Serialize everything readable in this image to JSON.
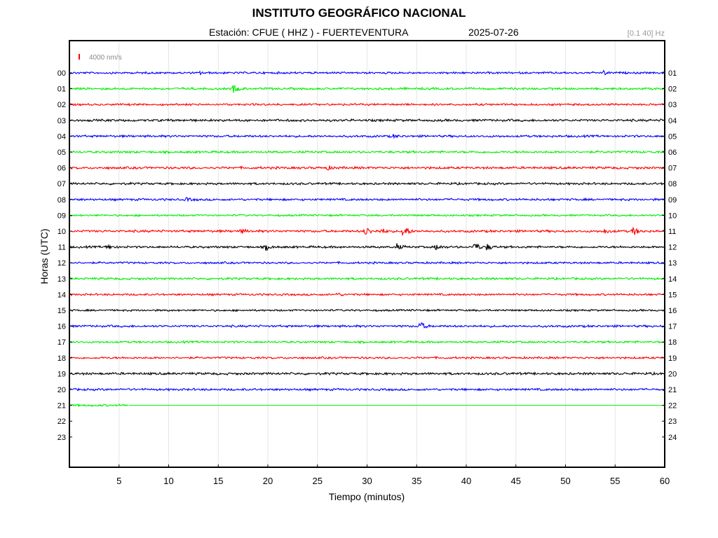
{
  "title": "INSTITUTO GEOGRÁFICO NACIONAL",
  "subtitle": {
    "station": "Estación:  CFUE ( HHZ ) - FUERTEVENTURA",
    "date": "2025-07-26"
  },
  "filter_band": "[0.1 40] Hz",
  "chart_data": {
    "type": "line",
    "title": "INSTITUTO GEOGRÁFICO NACIONAL",
    "xlabel": "Tiempo (minutos)",
    "ylabel": "Horas (UTC)",
    "xlim": [
      0,
      60
    ],
    "x_ticks": [
      5,
      10,
      15,
      20,
      25,
      30,
      35,
      40,
      45,
      50,
      55,
      60
    ],
    "left_tick_labels": [
      "00",
      "01",
      "02",
      "03",
      "04",
      "05",
      "06",
      "07",
      "08",
      "09",
      "10",
      "11",
      "12",
      "13",
      "14",
      "15",
      "16",
      "17",
      "18",
      "19",
      "20",
      "21",
      "22",
      "23"
    ],
    "right_tick_labels": [
      "01",
      "02",
      "03",
      "04",
      "05",
      "06",
      "07",
      "08",
      "09",
      "10",
      "11",
      "12",
      "13",
      "14",
      "15",
      "16",
      "17",
      "18",
      "19",
      "20",
      "21",
      "22",
      "23",
      "24"
    ],
    "grid": true,
    "scale_bar": {
      "label": "4000 nm/s",
      "color": "#ff0000"
    },
    "color_cycle": [
      "#0000ff",
      "#00ee00",
      "#ff0000",
      "#000000"
    ],
    "series": [
      {
        "hour": "00",
        "color": "#0000ff",
        "amplitude": 1.2,
        "end_minute": 60,
        "events": [
          {
            "t": 13.2,
            "amp": 1.8
          },
          {
            "t": 53.8,
            "amp": 3.0
          }
        ]
      },
      {
        "hour": "01",
        "color": "#00ee00",
        "amplitude": 1.3,
        "end_minute": 60,
        "events": [
          {
            "t": 16.5,
            "amp": 6.0
          }
        ]
      },
      {
        "hour": "02",
        "color": "#ff0000",
        "amplitude": 1.2,
        "end_minute": 60,
        "events": []
      },
      {
        "hour": "03",
        "color": "#000000",
        "amplitude": 1.4,
        "end_minute": 60,
        "events": []
      },
      {
        "hour": "04",
        "color": "#0000ff",
        "amplitude": 1.3,
        "end_minute": 60,
        "events": [
          {
            "t": 32.5,
            "amp": 2.5
          }
        ]
      },
      {
        "hour": "05",
        "color": "#00ee00",
        "amplitude": 1.3,
        "end_minute": 60,
        "events": []
      },
      {
        "hour": "06",
        "color": "#ff0000",
        "amplitude": 1.4,
        "end_minute": 60,
        "events": [
          {
            "t": 26.0,
            "amp": 2.5
          }
        ]
      },
      {
        "hour": "07",
        "color": "#000000",
        "amplitude": 1.3,
        "end_minute": 60,
        "events": []
      },
      {
        "hour": "08",
        "color": "#0000ff",
        "amplitude": 1.3,
        "end_minute": 60,
        "events": [
          {
            "t": 11.8,
            "amp": 2.2
          }
        ]
      },
      {
        "hour": "09",
        "color": "#00ee00",
        "amplitude": 1.1,
        "end_minute": 60,
        "events": []
      },
      {
        "hour": "10",
        "color": "#ff0000",
        "amplitude": 1.4,
        "end_minute": 60,
        "events": [
          {
            "t": 17.2,
            "amp": 3.0
          },
          {
            "t": 29.8,
            "amp": 7.0
          },
          {
            "t": 31.4,
            "amp": 4.0
          },
          {
            "t": 33.6,
            "amp": 11.0
          },
          {
            "t": 53.8,
            "amp": 4.0
          },
          {
            "t": 56.8,
            "amp": 6.0
          }
        ]
      },
      {
        "hour": "11",
        "color": "#000000",
        "amplitude": 1.3,
        "end_minute": 60,
        "events": [
          {
            "t": 3.8,
            "amp": 4.0
          },
          {
            "t": 19.8,
            "amp": 4.0
          },
          {
            "t": 33.0,
            "amp": 4.0
          },
          {
            "t": 36.9,
            "amp": 4.0
          },
          {
            "t": 40.8,
            "amp": 7.0
          },
          {
            "t": 42.0,
            "amp": 5.0
          }
        ]
      },
      {
        "hour": "12",
        "color": "#0000ff",
        "amplitude": 1.2,
        "end_minute": 60,
        "events": []
      },
      {
        "hour": "13",
        "color": "#00ee00",
        "amplitude": 1.3,
        "end_minute": 60,
        "events": []
      },
      {
        "hour": "14",
        "color": "#ff0000",
        "amplitude": 1.2,
        "end_minute": 60,
        "events": [
          {
            "t": 27.0,
            "amp": 2.0
          }
        ]
      },
      {
        "hour": "15",
        "color": "#000000",
        "amplitude": 1.1,
        "end_minute": 60,
        "events": []
      },
      {
        "hour": "16",
        "color": "#0000ff",
        "amplitude": 1.3,
        "end_minute": 60,
        "events": [
          {
            "t": 35.2,
            "amp": 8.0
          }
        ]
      },
      {
        "hour": "17",
        "color": "#00ee00",
        "amplitude": 1.2,
        "end_minute": 60,
        "events": []
      },
      {
        "hour": "18",
        "color": "#ff0000",
        "amplitude": 1.2,
        "end_minute": 60,
        "events": []
      },
      {
        "hour": "19",
        "color": "#000000",
        "amplitude": 1.4,
        "end_minute": 60,
        "events": []
      },
      {
        "hour": "20",
        "color": "#0000ff",
        "amplitude": 1.3,
        "end_minute": 60,
        "events": []
      },
      {
        "hour": "21",
        "color": "#00ee00",
        "amplitude": 1.3,
        "end_minute": 6,
        "events": []
      }
    ]
  }
}
